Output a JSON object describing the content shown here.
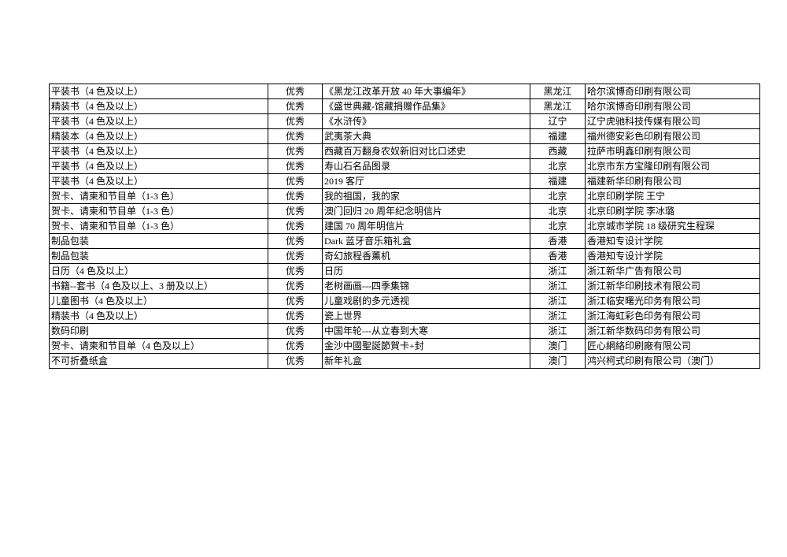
{
  "page": {
    "background_color": "#ffffff",
    "text_color": "#000000",
    "border_color": "#000000"
  },
  "table": {
    "columns": [
      {
        "key": "category"
      },
      {
        "key": "award"
      },
      {
        "key": "title"
      },
      {
        "key": "region"
      },
      {
        "key": "organization"
      }
    ],
    "rows": [
      {
        "category": "平装书（4 色及以上）",
        "award": "优秀",
        "title": "《黑龙江改革开放 40 年大事编年》",
        "region": "黑龙江",
        "organization": "哈尔滨博奇印刷有限公司"
      },
      {
        "category": "精装书（4 色及以上）",
        "award": "优秀",
        "title": "《盛世典藏-馆藏捐赠作品集》",
        "region": "黑龙江",
        "organization": "哈尔滨博奇印刷有限公司"
      },
      {
        "category": "平装书（4 色及以上）",
        "award": "优秀",
        "title": "《水浒传》",
        "region": "辽宁",
        "organization": "辽宁虎驰科技传媒有限公司"
      },
      {
        "category": "精装本（4 色及以上）",
        "award": "优秀",
        "title": "武夷茶大典",
        "region": "福建",
        "organization": "福州德安彩色印刷有限公司"
      },
      {
        "category": "平装书（4 色及以上）",
        "award": "优秀",
        "title": "西藏百万翻身农奴新旧对比口述史",
        "region": "西藏",
        "organization": "拉萨市明鑫印刷有限公司"
      },
      {
        "category": "平装书（4 色及以上）",
        "award": "优秀",
        "title": "寿山石名品图录",
        "region": "北京",
        "organization": "北京市东方宝隆印刷有限公司"
      },
      {
        "category": "平装书（4 色及以上）",
        "award": "优秀",
        "title": "2019 客厅",
        "region": "福建",
        "organization": "福建新华印刷有限公司"
      },
      {
        "category": "贺卡、请柬和节目单（1-3 色）",
        "award": "优秀",
        "title": "我的祖国，我的家",
        "region": "北京",
        "organization": "北京印刷学院 王宁"
      },
      {
        "category": "贺卡、请柬和节目单（1-3 色）",
        "award": "优秀",
        "title": "澳门回归 20 周年纪念明信片",
        "region": "北京",
        "organization": "北京印刷学院 李冰璐"
      },
      {
        "category": "贺卡、请柬和节目单（1-3 色）",
        "award": "优秀",
        "title": "建国 70 周年明信片",
        "region": "北京",
        "organization": "北京城市学院 18 级研究生程琛"
      },
      {
        "category": "制品包装",
        "award": "优秀",
        "title": "Dark 蓝牙音乐箱礼盒",
        "region": "香港",
        "organization": "香港知专设计学院"
      },
      {
        "category": "制品包装",
        "award": "优秀",
        "title": "奇幻旅程香薰机",
        "region": "香港",
        "organization": "香港知专设计学院"
      },
      {
        "category": "日历（4 色及以上）",
        "award": "优秀",
        "title": "日历",
        "region": "浙江",
        "organization": "浙江新华广告有限公司"
      },
      {
        "category": "书籍--套书（4 色及以上、3 册及以上）",
        "award": "优秀",
        "title": "老树画画---四季集锦",
        "region": "浙江",
        "organization": "浙江新华印刷技术有限公司"
      },
      {
        "category": "儿童图书（4 色及以上）",
        "award": "优秀",
        "title": "儿童戏剧的多元透视",
        "region": "浙江",
        "organization": "浙江临安曙光印务有限公司"
      },
      {
        "category": "精装书（4 色及以上）",
        "award": "优秀",
        "title": "瓷上世界",
        "region": "浙江",
        "organization": "浙江海虹彩色印务有限公司"
      },
      {
        "category": "数码印刷",
        "award": "优秀",
        "title": "中国年轮---从立春到大寒",
        "region": "浙江",
        "organization": "浙江新华数码印务有限公司"
      },
      {
        "category": "贺卡、请柬和节目单（4 色及以上）",
        "award": "优秀",
        "title": "金沙中國聖誕節賀卡+封",
        "region": "澳门",
        "organization": "匠心網絡印刷廠有限公司"
      },
      {
        "category": "不可折叠纸盒",
        "award": "优秀",
        "title": "新年礼盒",
        "region": "澳门",
        "organization": "鸿兴柯式印刷有限公司（澳门）"
      }
    ]
  }
}
